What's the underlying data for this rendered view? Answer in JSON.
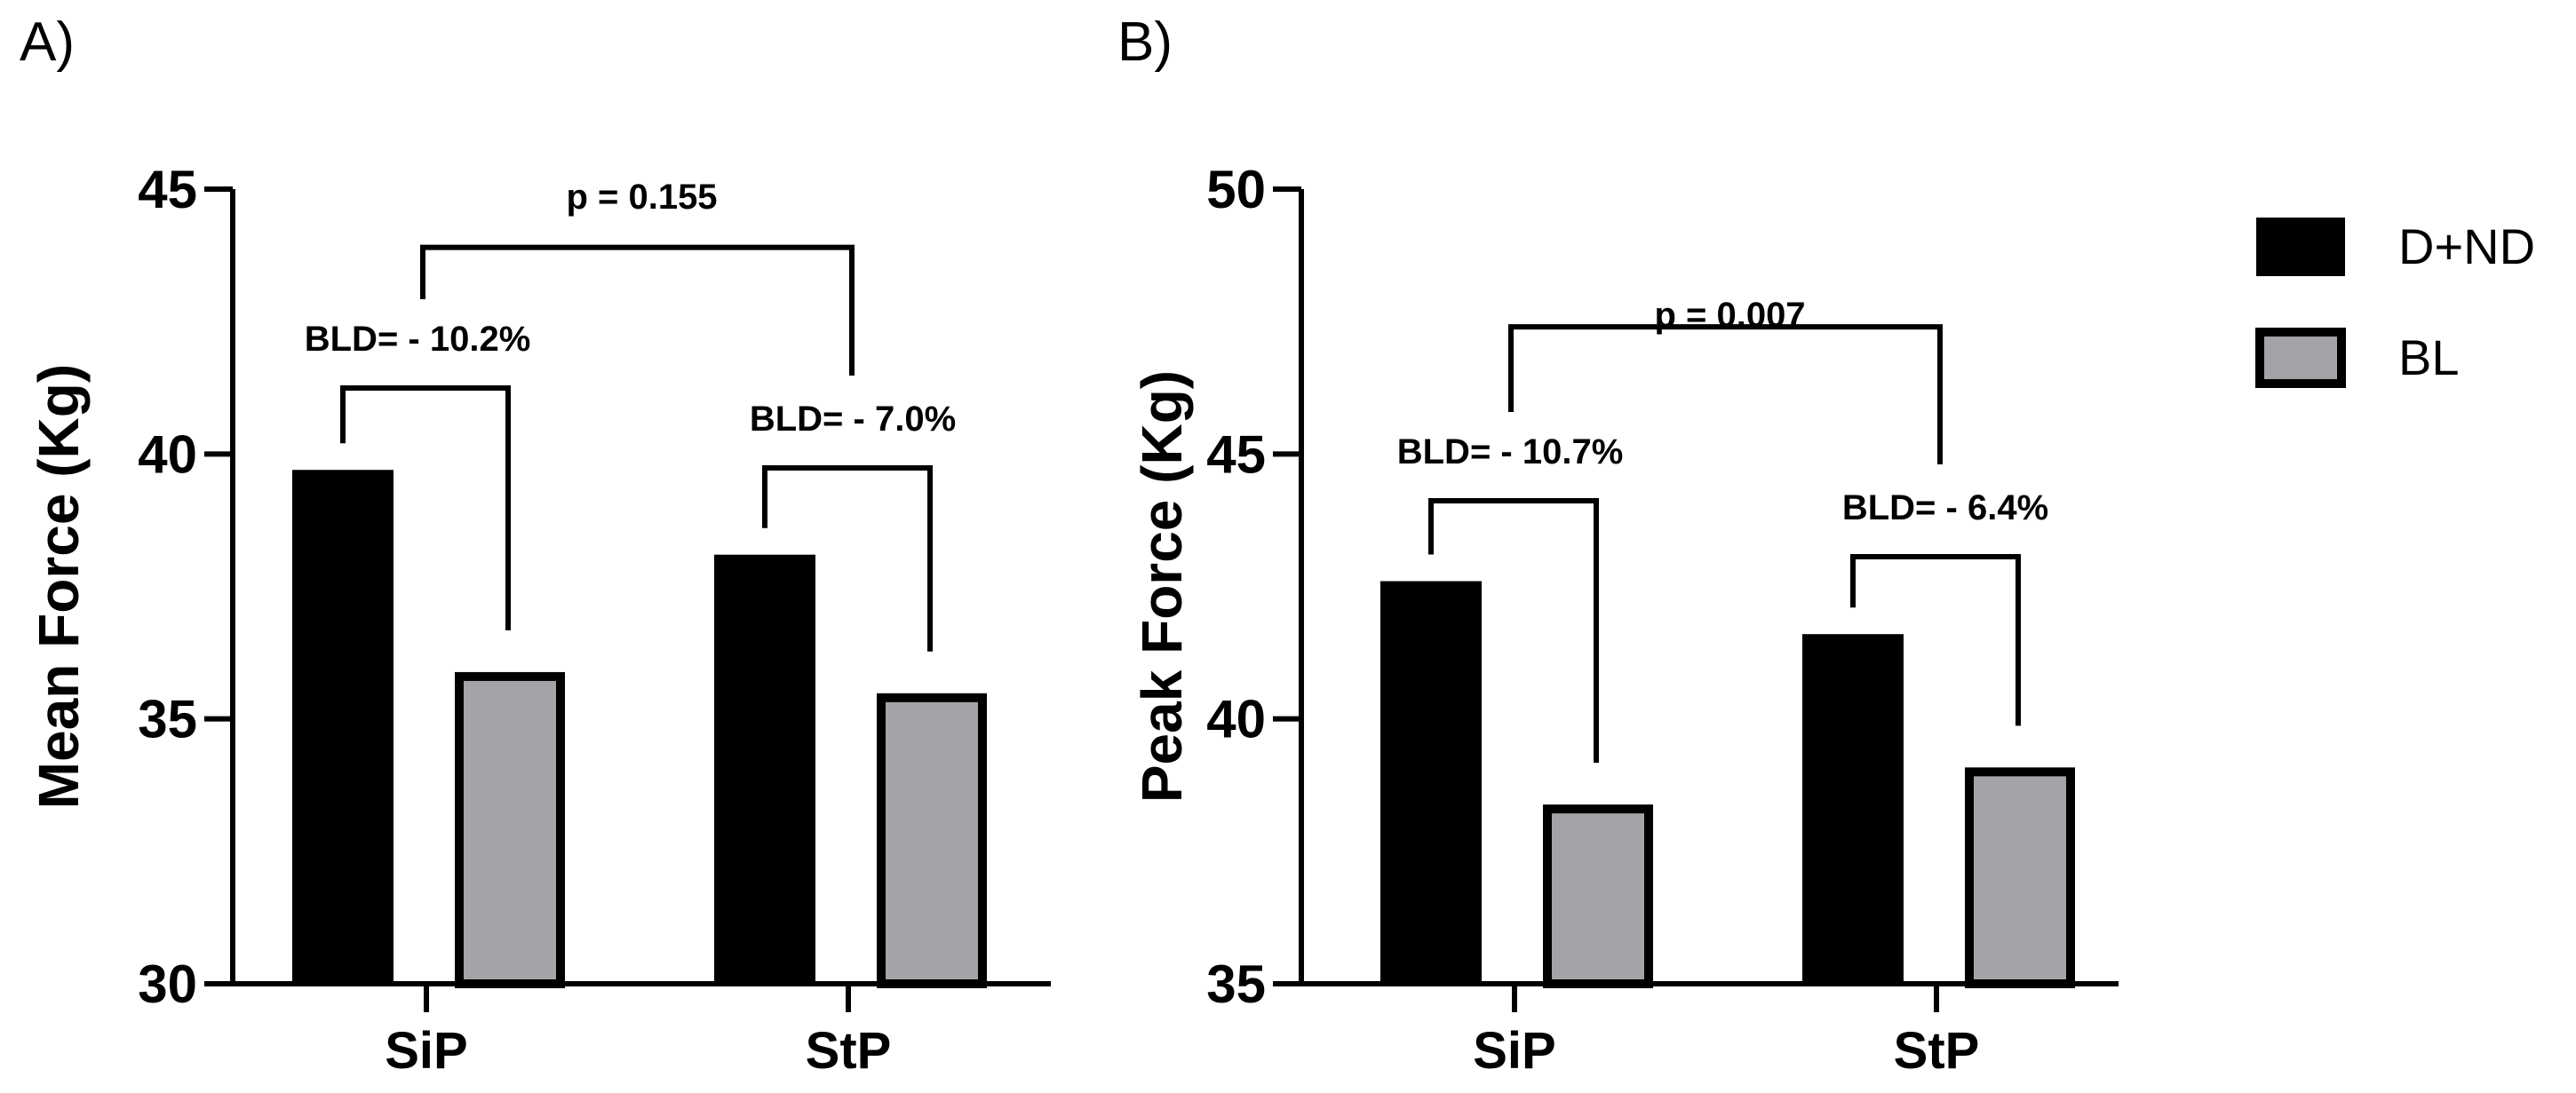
{
  "colors": {
    "series_1": "#000000",
    "series_2": "#a3a3a8",
    "outline": "#000000"
  },
  "legend": [
    {
      "label": "D+ND",
      "color": "#000000"
    },
    {
      "label": "BL",
      "color": "#a3a3a8"
    }
  ],
  "legend_position": "right",
  "chart_data": [
    {
      "panel_label": "A)",
      "type": "bar",
      "title": "",
      "xlabel": "",
      "ylabel": "Mean Force (Kg)",
      "ylim": [
        30,
        45
      ],
      "yticks": [
        30,
        35,
        40,
        45
      ],
      "ytick_labels": [
        "30",
        "35",
        "40",
        "45"
      ],
      "grid": false,
      "categories": [
        "SiP",
        "StP"
      ],
      "series": [
        {
          "name": "D+ND",
          "values": [
            39.7,
            38.1
          ]
        },
        {
          "name": "BL",
          "values": [
            35.8,
            35.4
          ]
        }
      ],
      "bld_annotations": [
        "BLD= - 10.2%",
        "BLD= - 7.0%"
      ],
      "comparison": {
        "text": "p = 0.155",
        "level": 43.9
      }
    },
    {
      "panel_label": "B)",
      "type": "bar",
      "title": "",
      "xlabel": "",
      "ylabel": "Peak Force (Kg)",
      "ylim": [
        35,
        50
      ],
      "yticks": [
        35,
        40,
        45,
        50
      ],
      "ytick_labels": [
        "35",
        "40",
        "45",
        "50"
      ],
      "grid": false,
      "categories": [
        "SiP",
        "StP"
      ],
      "series": [
        {
          "name": "D+ND",
          "values": [
            42.6,
            41.6
          ]
        },
        {
          "name": "BL",
          "values": [
            38.3,
            39.0
          ]
        }
      ],
      "bld_annotations": [
        "BLD= - 10.7%",
        "BLD= - 6.4%"
      ],
      "comparison": {
        "text": "p = 0.007",
        "level": 47.4
      }
    }
  ]
}
